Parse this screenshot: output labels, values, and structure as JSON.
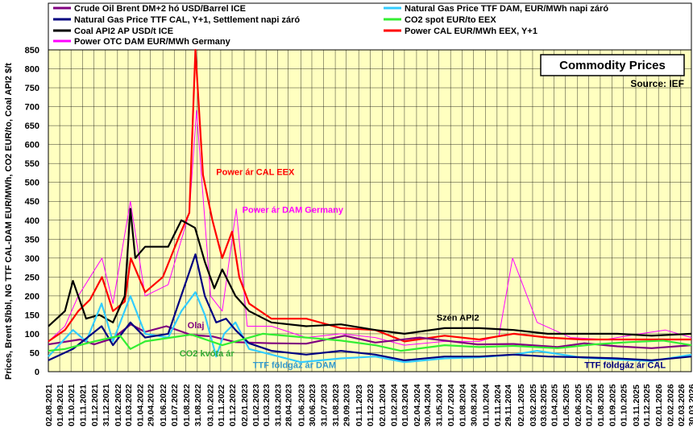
{
  "chart_data": {
    "type": "line",
    "title": "Commodity Prices",
    "source": "Source:  IEF",
    "ylabel": "Prices, Brent $/bbl, NG TTF CAL-DAM EUR/MWh, CO2 EUR/to, Coal API2 $/t",
    "ylim": [
      0,
      850
    ],
    "yticks": [
      0,
      50,
      100,
      150,
      200,
      250,
      300,
      350,
      400,
      450,
      500,
      550,
      600,
      650,
      700,
      750,
      800,
      850
    ],
    "xlim": [
      "2021-08-02",
      "2026-03-30"
    ],
    "xticks": [
      "02.08.2021",
      "01.09.2021",
      "01.10.2021",
      "01.11.2021",
      "01.12.2021",
      "31.12.2021",
      "01.02.2022",
      "01.03.2022",
      "01.04.2022",
      "29.04.2022",
      "01.06.2022",
      "01.07.2022",
      "01.08.2022",
      "31.08.2022",
      "03.10.2022",
      "01.11.2022",
      "01.12.2022",
      "02.01.2023",
      "01.02.2023",
      "01.03.2023",
      "31.03.2023",
      "28.04.2023",
      "01.06.2023",
      "30.06.2023",
      "31.07.2023",
      "31.08.2023",
      "29.09.2023",
      "01.11.2023",
      "01.12.2023",
      "02.01.2024",
      "01.02.2024",
      "01.03.2024",
      "02.04.2024",
      "30.04.2024",
      "31.05.2024",
      "01.07.2024",
      "01.08.2024",
      "30.08.2024",
      "01.10.2024",
      "01.11.2024",
      "29.11.2024",
      "02.01.2025",
      "03.02.2025",
      "03.03.2025",
      "01.04.2025",
      "01.05.2025",
      "02.06.2025",
      "01.07.2025",
      "01.08.2025",
      "01.09.2025",
      "01.10.2025",
      "03.11.2025",
      "01.12.2025",
      "02.01.2026",
      "02.02.2026",
      "02.03.2026",
      "30.03.2026"
    ],
    "grid": true,
    "legend_position": "top",
    "background": "#ffffc0",
    "legend": [
      {
        "name": "Crude Oil Brent DM+2 hó USD/Barrel ICE",
        "color": "#800080"
      },
      {
        "name": "Natural Gas Price TTF DAM, EUR/MWh napi záró",
        "color": "#33ccff"
      },
      {
        "name": "Natural Gas Price TTF CAL, Y+1, Settlement napi záró",
        "color": "#000080"
      },
      {
        "name": "CO2 spot EUR/to EEX",
        "color": "#33ee33"
      },
      {
        "name": "Coal API2 AP USD/t ICE",
        "color": "#000000"
      },
      {
        "name": "Power CAL EUR/MWh EEX, Y+1",
        "color": "#ff0000"
      },
      {
        "name": "Power OTC DAM EUR/MWh Germany",
        "color": "#ff00ff"
      }
    ],
    "annotations": [
      {
        "text": "Power ár CAL EEX",
        "color": "#ff0000",
        "at": [
          "2022-10-20",
          520
        ]
      },
      {
        "text": "Power ár DAM Germany",
        "color": "#ff00ff",
        "at": [
          "2022-12-28",
          420
        ]
      },
      {
        "text": "Szén API2",
        "color": "#000000",
        "at": [
          "2024-05-25",
          135
        ]
      },
      {
        "text": "Olaj",
        "color": "#800080",
        "at": [
          "2022-08-05",
          115
        ]
      },
      {
        "text": "CO2 kvóta ár",
        "color": "#33aa33",
        "at": [
          "2022-07-15",
          40
        ]
      },
      {
        "text": "TTF földgáz ár DAM",
        "color": "#3399cc",
        "at": [
          "2023-01-25",
          10
        ]
      },
      {
        "text": "TTF földgáz ár CAL",
        "color": "#000080",
        "at": [
          "2025-06-20",
          10
        ]
      }
    ],
    "series": [
      {
        "name": "Power OTC DAM EUR/MWh Germany",
        "color": "#ff00ff",
        "x": [
          "2021-08-02",
          "2021-09-15",
          "2021-10-20",
          "2021-12-22",
          "2022-01-20",
          "2022-03-07",
          "2022-04-15",
          "2022-06-15",
          "2022-08-10",
          "2022-08-29",
          "2022-10-05",
          "2022-11-05",
          "2022-12-12",
          "2023-01-10",
          "2023-03-15",
          "2023-06-15",
          "2023-09-15",
          "2023-12-15",
          "2024-03-01",
          "2024-06-15",
          "2024-09-15",
          "2024-11-06",
          "2024-12-12",
          "2025-02-15",
          "2025-05-15",
          "2025-08-15",
          "2025-11-15",
          "2026-01-20",
          "2026-03-30"
        ],
        "y": [
          80,
          120,
          200,
          300,
          180,
          450,
          200,
          230,
          420,
          690,
          200,
          160,
          430,
          120,
          120,
          90,
          100,
          90,
          70,
          80,
          80,
          95,
          300,
          130,
          90,
          85,
          100,
          110,
          90
        ]
      },
      {
        "name": "Power CAL EUR/MWh EEX, Y+1",
        "color": "#ff0000",
        "x": [
          "2021-08-02",
          "2021-09-15",
          "2021-10-20",
          "2021-11-20",
          "2021-12-22",
          "2022-01-20",
          "2022-02-20",
          "2022-03-08",
          "2022-04-15",
          "2022-06-01",
          "2022-07-15",
          "2022-08-10",
          "2022-08-26",
          "2022-09-15",
          "2022-10-10",
          "2022-11-05",
          "2022-12-01",
          "2022-12-20",
          "2023-01-15",
          "2023-03-15",
          "2023-06-15",
          "2023-09-15",
          "2023-12-15",
          "2024-03-01",
          "2024-06-15",
          "2024-09-15",
          "2024-12-15",
          "2025-03-15",
          "2025-06-15",
          "2025-09-15",
          "2025-12-15",
          "2026-03-30"
        ],
        "y": [
          80,
          110,
          160,
          190,
          250,
          160,
          185,
          300,
          210,
          250,
          360,
          420,
          850,
          520,
          400,
          300,
          370,
          250,
          180,
          140,
          140,
          115,
          110,
          80,
          95,
          85,
          100,
          90,
          85,
          85,
          85,
          85
        ]
      },
      {
        "name": "Coal API2 AP USD/t ICE",
        "color": "#000000",
        "x": [
          "2021-08-02",
          "2021-09-15",
          "2021-10-06",
          "2021-11-10",
          "2021-12-15",
          "2022-01-20",
          "2022-02-20",
          "2022-03-07",
          "2022-03-20",
          "2022-04-15",
          "2022-06-15",
          "2022-07-20",
          "2022-08-25",
          "2022-09-20",
          "2022-10-15",
          "2022-11-05",
          "2022-12-10",
          "2023-01-15",
          "2023-03-15",
          "2023-06-15",
          "2023-09-15",
          "2023-12-15",
          "2024-03-01",
          "2024-06-15",
          "2024-09-15",
          "2024-12-15",
          "2025-03-15",
          "2025-06-15",
          "2025-09-15",
          "2025-12-15",
          "2026-03-30"
        ],
        "y": [
          120,
          160,
          240,
          140,
          150,
          130,
          200,
          430,
          300,
          330,
          330,
          400,
          380,
          290,
          220,
          270,
          200,
          160,
          130,
          120,
          125,
          110,
          100,
          115,
          115,
          110,
          100,
          100,
          100,
          95,
          100
        ]
      },
      {
        "name": "Crude Oil Brent DM+2 hó USD/Barrel ICE",
        "color": "#800080",
        "x": [
          "2021-08-02",
          "2021-10-25",
          "2021-12-01",
          "2022-01-20",
          "2022-03-08",
          "2022-04-15",
          "2022-06-10",
          "2022-08-15",
          "2022-10-10",
          "2022-12-10",
          "2023-03-15",
          "2023-06-15",
          "2023-09-25",
          "2023-12-15",
          "2024-04-10",
          "2024-09-10",
          "2024-12-15",
          "2025-04-10",
          "2025-06-20",
          "2025-09-15",
          "2025-12-15",
          "2026-03-30"
        ],
        "y": [
          72,
          85,
          72,
          88,
          125,
          105,
          120,
          97,
          93,
          78,
          75,
          74,
          95,
          77,
          90,
          72,
          73,
          65,
          75,
          67,
          62,
          70
        ]
      },
      {
        "name": "Natural Gas Price TTF DAM, EUR/MWh napi záró",
        "color": "#33ccff",
        "x": [
          "2021-08-02",
          "2021-10-06",
          "2021-11-10",
          "2021-12-21",
          "2022-01-20",
          "2022-03-07",
          "2022-04-15",
          "2022-06-15",
          "2022-07-20",
          "2022-08-26",
          "2022-09-20",
          "2022-10-20",
          "2022-11-10",
          "2022-12-10",
          "2023-01-15",
          "2023-03-15",
          "2023-06-01",
          "2023-09-15",
          "2023-12-15",
          "2024-03-01",
          "2024-06-15",
          "2024-09-15",
          "2024-12-15",
          "2025-02-15",
          "2025-06-15",
          "2025-09-15",
          "2025-12-15",
          "2026-03-30"
        ],
        "y": [
          40,
          110,
          80,
          180,
          80,
          200,
          100,
          90,
          160,
          210,
          150,
          40,
          100,
          130,
          60,
          45,
          25,
          35,
          40,
          25,
          35,
          38,
          45,
          55,
          37,
          32,
          28,
          45
        ]
      },
      {
        "name": "Natural Gas Price TTF CAL, Y+1, Settlement napi záró",
        "color": "#000080",
        "x": [
          "2021-08-02",
          "2021-10-06",
          "2021-12-21",
          "2022-01-20",
          "2022-03-07",
          "2022-04-15",
          "2022-06-15",
          "2022-08-26",
          "2022-09-20",
          "2022-10-20",
          "2022-11-15",
          "2022-12-10",
          "2023-01-15",
          "2023-03-15",
          "2023-06-15",
          "2023-09-15",
          "2023-12-15",
          "2024-03-01",
          "2024-06-15",
          "2024-09-15",
          "2024-12-15",
          "2025-03-15",
          "2025-06-15",
          "2025-09-15",
          "2025-12-15",
          "2026-03-30"
        ],
        "y": [
          30,
          60,
          120,
          70,
          130,
          90,
          100,
          310,
          200,
          130,
          140,
          110,
          75,
          55,
          45,
          55,
          45,
          30,
          40,
          40,
          45,
          40,
          38,
          35,
          30,
          40
        ]
      },
      {
        "name": "CO2 spot EUR/to EEX",
        "color": "#33ee33",
        "x": [
          "2021-08-02",
          "2021-09-15",
          "2021-12-01",
          "2022-02-08",
          "2022-03-07",
          "2022-04-15",
          "2022-08-15",
          "2022-11-05",
          "2023-02-20",
          "2023-06-15",
          "2023-09-15",
          "2023-12-15",
          "2024-02-20",
          "2024-06-15",
          "2024-09-15",
          "2024-12-15",
          "2025-04-10",
          "2025-07-15",
          "2025-10-15",
          "2026-01-15",
          "2026-03-30"
        ],
        "y": [
          55,
          60,
          80,
          95,
          60,
          80,
          98,
          70,
          100,
          90,
          82,
          70,
          55,
          70,
          65,
          68,
          62,
          72,
          78,
          82,
          70
        ]
      }
    ]
  }
}
